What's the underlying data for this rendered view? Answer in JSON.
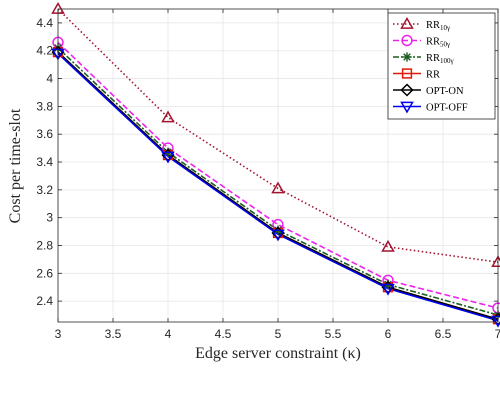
{
  "chart_data": {
    "type": "line",
    "title": "",
    "xlabel": "Edge server constraint (κ)",
    "ylabel": "Cost  per time-slot",
    "x": [
      3,
      4,
      5,
      6,
      7
    ],
    "xlim": [
      3,
      7
    ],
    "ylim": [
      2.25,
      4.5
    ],
    "xticks": [
      "3",
      "3.5",
      "4",
      "4.5",
      "5",
      "5.5",
      "6",
      "6.5",
      "7"
    ],
    "yticks": [
      "2.4",
      "2.6",
      "2.8",
      "3",
      "3.2",
      "3.4",
      "3.6",
      "3.8",
      "4",
      "4.2",
      "4.4"
    ],
    "grid": true,
    "legend_position": "top-right",
    "series": [
      {
        "name": "RR",
        "sub": "10γ",
        "color": "#a2142f",
        "dash": "1.5 2.5",
        "marker": "triangle",
        "values": [
          4.5,
          3.72,
          3.21,
          2.79,
          2.68
        ]
      },
      {
        "name": "RR",
        "sub": "50γ",
        "color": "#ee22ee",
        "dash": "6 3",
        "marker": "circle",
        "values": [
          4.26,
          3.5,
          2.95,
          2.55,
          2.35
        ]
      },
      {
        "name": "RR",
        "sub": "100γ",
        "color": "#1b5e20",
        "dash": "6 2 2 2",
        "marker": "star",
        "values": [
          4.22,
          3.47,
          2.91,
          2.52,
          2.3
        ]
      },
      {
        "name": "RR",
        "sub": "",
        "color": "#e3170a",
        "dash": "",
        "marker": "square",
        "values": [
          4.19,
          3.45,
          2.89,
          2.5,
          2.27
        ]
      },
      {
        "name": "OPT-ON",
        "sub": "",
        "color": "#000000",
        "dash": "",
        "marker": "diamond",
        "values": [
          4.19,
          3.45,
          2.89,
          2.5,
          2.27
        ]
      },
      {
        "name": "OPT-OFF",
        "sub": "",
        "color": "#0000ee",
        "dash": "",
        "marker": "down-triangle",
        "values": [
          4.18,
          3.44,
          2.88,
          2.49,
          2.26
        ]
      }
    ]
  }
}
